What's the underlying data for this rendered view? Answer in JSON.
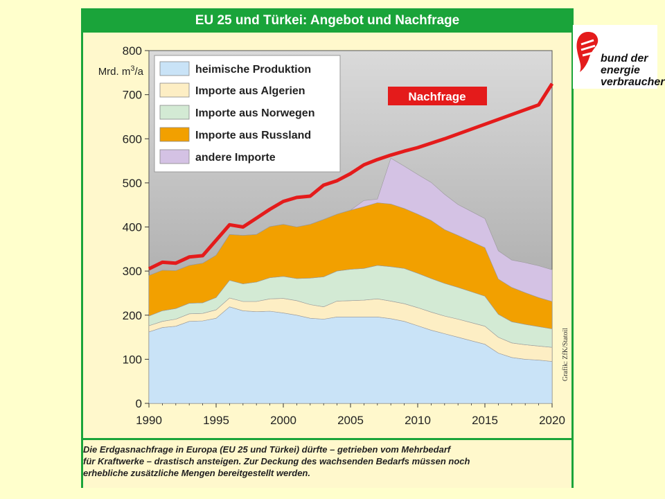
{
  "title": "EU 25 und Türkei: Angebot und Nachfrage",
  "caption": [
    "Die Erdgasnachfrage in Europa (EU 25 und Türkei) dürfte – getrieben vom Mehrbedarf",
    "für Kraftwerke – drastisch ansteigen. Zur Deckung des wachsenden Bedarfs müssen noch",
    "erhebliche zusätzliche Mengen bereitgestellt werden."
  ],
  "logo": {
    "line1": "bund der",
    "line2": "energie",
    "line3": "verbraucher",
    "icon": "hand-logo-icon"
  },
  "colors": {
    "heimische": "#c9e3f7",
    "algerien": "#fdeec4",
    "norwegen": "#d3ead4",
    "russland": "#f2a000",
    "andere": "#d4c2e4",
    "nachfrage": "#e41b1b",
    "green": "#1aa43a"
  },
  "chart_data": {
    "type": "area",
    "title": "EU 25 und Türkei: Angebot und Nachfrage",
    "ylabel": "Mrd. m3/a",
    "xlabel": "",
    "ylim": [
      0,
      800
    ],
    "xlim": [
      1990,
      2020
    ],
    "grid": false,
    "legend_position": "top-left",
    "yticks": [
      0,
      100,
      200,
      300,
      400,
      500,
      600,
      700,
      800
    ],
    "xticks": [
      1990,
      1995,
      2000,
      2005,
      2010,
      2015,
      2020
    ],
    "source_note": "Grafik: ZfK/Statoil",
    "x": [
      1990,
      1991,
      1992,
      1993,
      1994,
      1995,
      1996,
      1997,
      1998,
      1999,
      2000,
      2001,
      2002,
      2003,
      2004,
      2005,
      2006,
      2007,
      2008,
      2009,
      2010,
      2011,
      2012,
      2013,
      2014,
      2015,
      2016,
      2017,
      2018,
      2019,
      2020
    ],
    "series": [
      {
        "name": "heimische Produktion",
        "color_key": "heimische",
        "values": [
          162,
          172,
          175,
          186,
          187,
          193,
          219,
          210,
          208,
          209,
          205,
          200,
          193,
          191,
          196,
          196,
          196,
          196,
          192,
          186,
          176,
          166,
          158,
          150,
          142,
          134,
          114,
          104,
          100,
          98,
          95
        ]
      },
      {
        "name": "Importe aus Algerien",
        "color_key": "algerien",
        "values": [
          14,
          14,
          16,
          17,
          17,
          19,
          20,
          21,
          23,
          28,
          33,
          33,
          31,
          28,
          36,
          37,
          38,
          41,
          40,
          40,
          41,
          41,
          40,
          41,
          41,
          41,
          36,
          33,
          33,
          32,
          32
        ]
      },
      {
        "name": "Importe aus Norwegen",
        "color_key": "norwegen",
        "values": [
          22,
          24,
          24,
          24,
          24,
          28,
          40,
          40,
          44,
          48,
          50,
          50,
          60,
          68,
          68,
          71,
          72,
          76,
          78,
          80,
          78,
          76,
          74,
          72,
          70,
          68,
          52,
          48,
          46,
          44,
          42
        ]
      },
      {
        "name": "Importe aus Russland",
        "color_key": "russland",
        "values": [
          92,
          92,
          86,
          86,
          90,
          96,
          104,
          110,
          108,
          116,
          118,
          117,
          122,
          130,
          129,
          134,
          140,
          142,
          142,
          136,
          134,
          132,
          122,
          118,
          114,
          110,
          80,
          78,
          72,
          66,
          62
        ]
      },
      {
        "name": "andere Importe",
        "color_key": "andere",
        "values": [
          0,
          0,
          0,
          0,
          0,
          0,
          0,
          0,
          0,
          0,
          0,
          0,
          0,
          0,
          0,
          0,
          14,
          8,
          104,
          96,
          90,
          86,
          80,
          70,
          68,
          66,
          64,
          62,
          68,
          72,
          72
        ]
      }
    ],
    "demand": {
      "name": "Nachfrage",
      "label": "Nachfrage",
      "color_key": "nachfrage",
      "values": [
        305,
        320,
        318,
        332,
        335,
        370,
        405,
        400,
        420,
        440,
        458,
        467,
        470,
        495,
        505,
        521,
        541,
        553,
        563,
        572,
        580,
        590,
        600,
        611,
        622,
        633,
        644,
        655,
        666,
        677,
        725
      ]
    }
  }
}
